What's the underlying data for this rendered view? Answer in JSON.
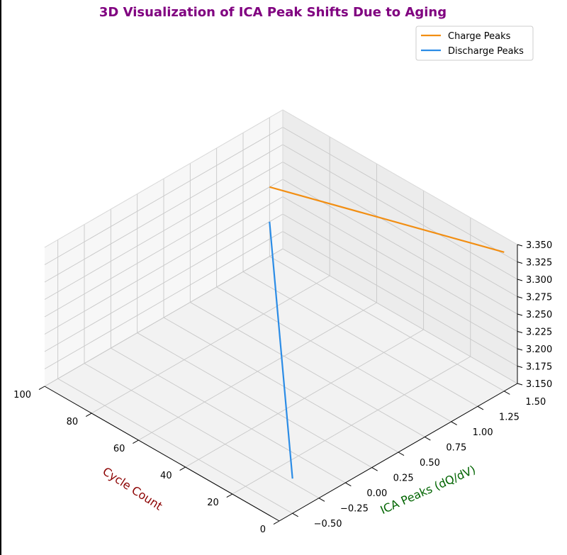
{
  "chart_data": {
    "type": "line3d",
    "title": "3D Visualization of ICA Peak Shifts Due to Aging",
    "xlabel": "Cycle Count",
    "ylabel": "ICA Peaks (dQ/dV)",
    "zlabel": "",
    "xlim": [
      0,
      100
    ],
    "ylim": [
      -0.625,
      1.625
    ],
    "zlim": [
      3.15,
      3.35
    ],
    "x_ticks": [
      "0",
      "20",
      "40",
      "60",
      "80",
      "100"
    ],
    "x_tick_values": [
      0,
      20,
      40,
      60,
      80,
      100
    ],
    "y_ticks": [
      "−0.50",
      "−0.25",
      "0.00",
      "0.25",
      "0.50",
      "0.75",
      "1.00",
      "1.25",
      "1.50"
    ],
    "y_tick_values": [
      -0.5,
      -0.25,
      0,
      0.25,
      0.5,
      0.75,
      1.0,
      1.25,
      1.5
    ],
    "z_ticks": [
      "3.150",
      "3.175",
      "3.200",
      "3.225",
      "3.250",
      "3.275",
      "3.300",
      "3.325",
      "3.350"
    ],
    "z_tick_values": [
      3.15,
      3.175,
      3.2,
      3.225,
      3.25,
      3.275,
      3.3,
      3.325,
      3.35
    ],
    "legend_position": "top-right",
    "grid": true,
    "series": [
      {
        "name": "Charge Peaks",
        "color": "#f28e12",
        "x": [
          0,
          100
        ],
        "y": [
          1.5,
          1.5
        ],
        "z": [
          3.35,
          3.25
        ]
      },
      {
        "name": "Discharge Peaks",
        "color": "#2b8ce6",
        "x": [
          0,
          100
        ],
        "y": [
          -0.5,
          1.5
        ],
        "z": [
          3.2,
          3.2
        ]
      }
    ],
    "colors": {
      "title": "#800080",
      "xlabel": "#8b0000",
      "ylabel": "#006400"
    }
  }
}
